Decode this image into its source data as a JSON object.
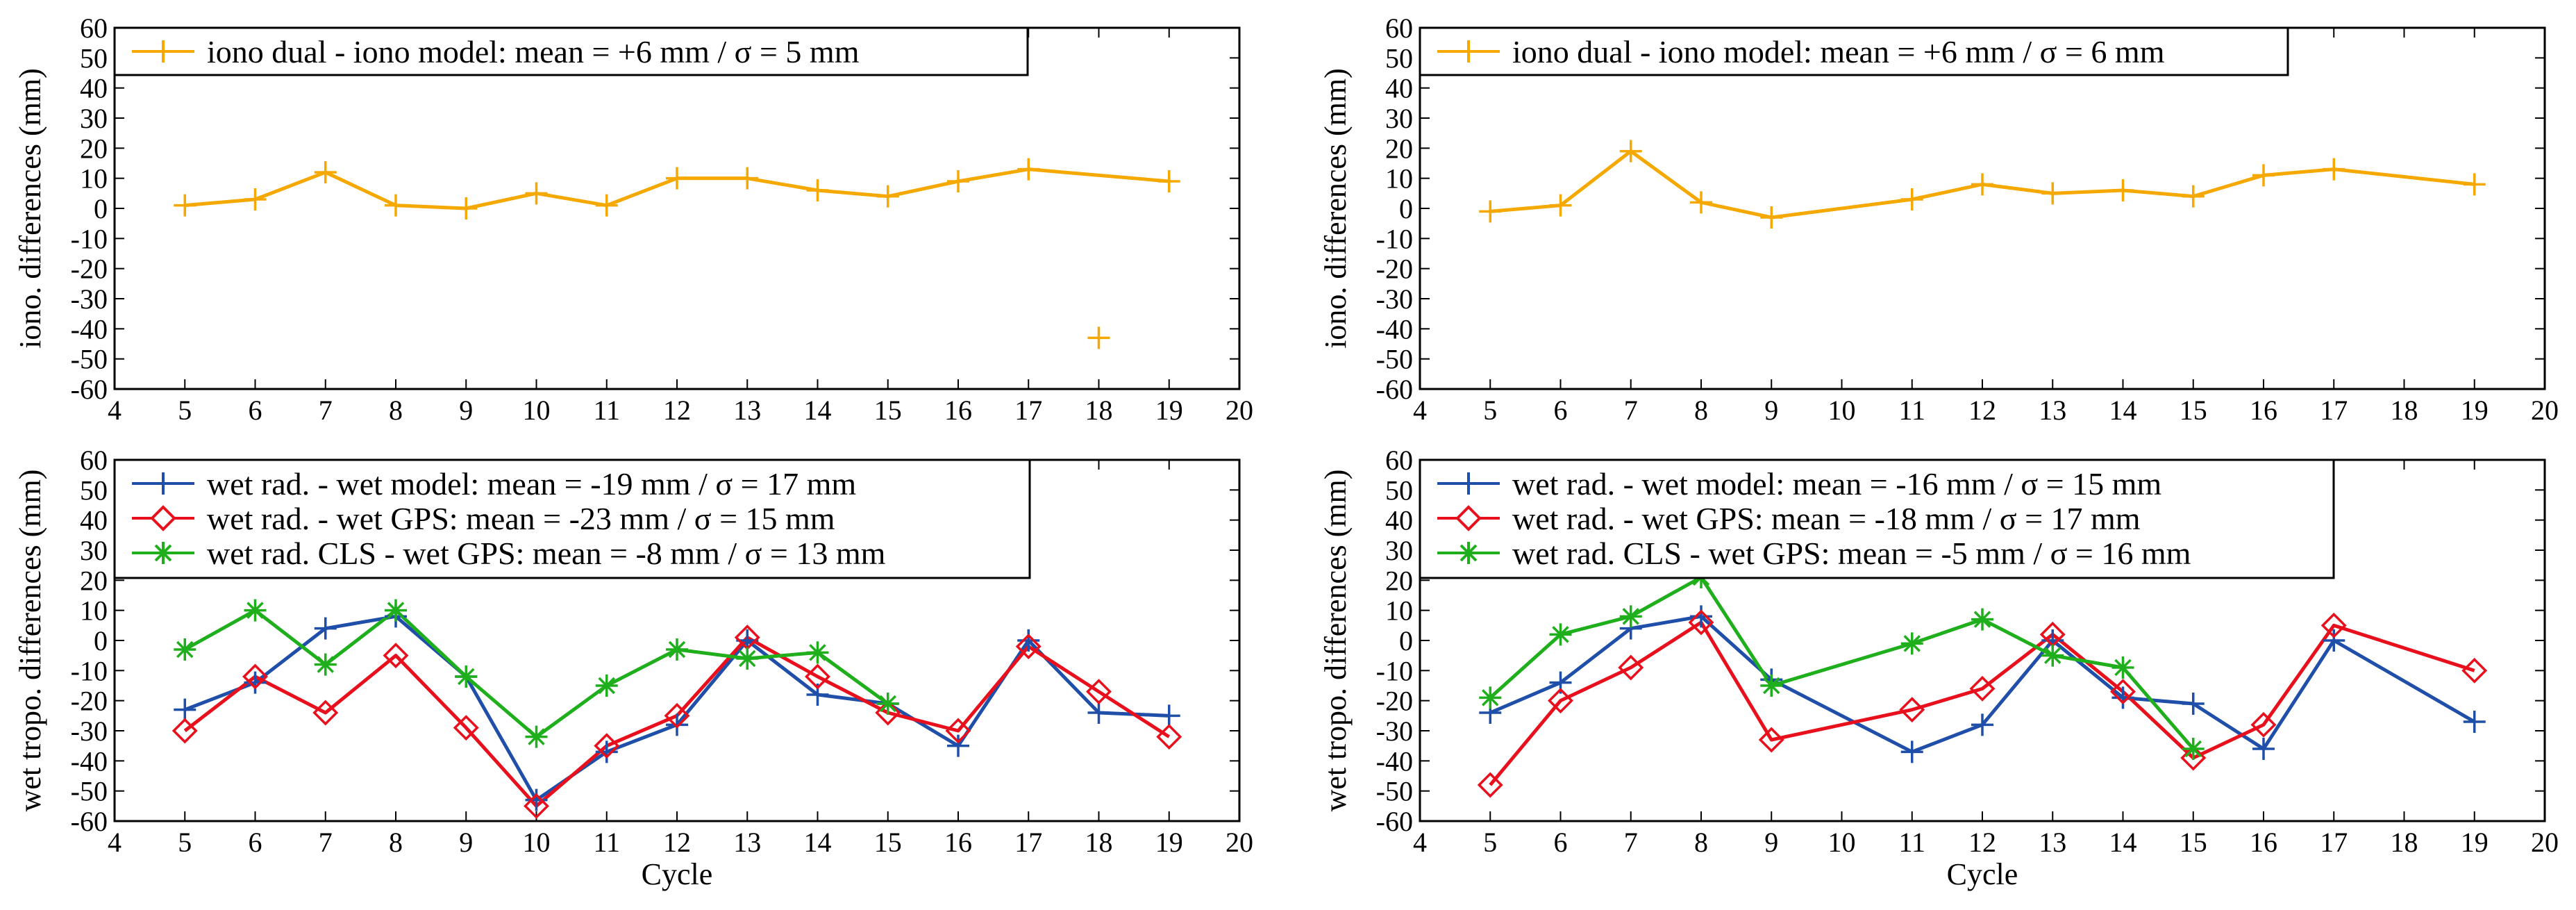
{
  "figure": {
    "panels": [
      {
        "id": "top-left",
        "xlabel": "",
        "ylabel": "iono. differences (mm)",
        "legend": "top-left"
      },
      {
        "id": "top-right",
        "xlabel": "",
        "ylabel": "iono. differences (mm)",
        "legend": "top-left"
      },
      {
        "id": "bottom-left",
        "xlabel": "Cycle",
        "ylabel": "wet tropo. differences (mm)",
        "legend": "top-left"
      },
      {
        "id": "bottom-right",
        "xlabel": "Cycle",
        "ylabel": "wet tropo. differences (mm)",
        "legend": "top-left"
      }
    ]
  },
  "chart_data": [
    {
      "type": "line",
      "panel": "top-left",
      "title": "",
      "xlabel": "",
      "ylabel": "iono. differences (mm)",
      "xlim": [
        4,
        20
      ],
      "ylim": [
        -60,
        60
      ],
      "xticks": [
        4,
        5,
        6,
        7,
        8,
        9,
        10,
        11,
        12,
        13,
        14,
        15,
        16,
        17,
        18,
        19,
        20
      ],
      "yticks": [
        60,
        50,
        40,
        30,
        20,
        10,
        0,
        -10,
        -20,
        -30,
        -40,
        -50,
        -60
      ],
      "series": [
        {
          "name": "iono dual - iono model: mean = +6 mm / σ = 5 mm",
          "color": "#f5a800",
          "marker": "plus",
          "line_x": [
            5,
            6,
            7,
            8,
            9,
            10,
            11,
            12,
            13,
            14,
            15,
            16,
            17,
            19
          ],
          "line_y": [
            1,
            3,
            12,
            1,
            0,
            5,
            1,
            10,
            10,
            6,
            4,
            9,
            13,
            9
          ],
          "points_x": [
            5,
            6,
            7,
            8,
            9,
            10,
            11,
            12,
            13,
            14,
            15,
            16,
            17,
            18,
            19
          ],
          "points_y": [
            1,
            3,
            12,
            1,
            0,
            5,
            1,
            10,
            10,
            6,
            4,
            9,
            13,
            -43,
            9
          ]
        }
      ]
    },
    {
      "type": "line",
      "panel": "top-right",
      "title": "",
      "xlabel": "",
      "ylabel": "iono. differences (mm)",
      "xlim": [
        4,
        20
      ],
      "ylim": [
        -60,
        60
      ],
      "xticks": [
        4,
        5,
        6,
        7,
        8,
        9,
        10,
        11,
        12,
        13,
        14,
        15,
        16,
        17,
        18,
        19,
        20
      ],
      "yticks": [
        60,
        50,
        40,
        30,
        20,
        10,
        0,
        -10,
        -20,
        -30,
        -40,
        -50,
        -60
      ],
      "series": [
        {
          "name": "iono dual - iono model: mean = +6 mm / σ = 6 mm",
          "color": "#f5a800",
          "marker": "plus",
          "line_x": [
            5,
            6,
            7,
            8,
            9,
            11,
            12,
            13,
            14,
            15,
            16,
            17,
            19
          ],
          "line_y": [
            -1,
            1,
            19,
            2,
            -3,
            3,
            8,
            5,
            6,
            4,
            11,
            13,
            8
          ],
          "points_x": [
            5,
            6,
            7,
            8,
            9,
            11,
            12,
            13,
            14,
            15,
            16,
            17,
            19
          ],
          "points_y": [
            -1,
            1,
            19,
            2,
            -3,
            3,
            8,
            5,
            6,
            4,
            11,
            13,
            8
          ]
        }
      ]
    },
    {
      "type": "line",
      "panel": "bottom-left",
      "title": "",
      "xlabel": "Cycle",
      "ylabel": "wet tropo. differences (mm)",
      "xlim": [
        4,
        20
      ],
      "ylim": [
        -60,
        60
      ],
      "xticks": [
        4,
        5,
        6,
        7,
        8,
        9,
        10,
        11,
        12,
        13,
        14,
        15,
        16,
        17,
        18,
        19,
        20
      ],
      "yticks": [
        60,
        50,
        40,
        30,
        20,
        10,
        0,
        -10,
        -20,
        -30,
        -40,
        -50,
        -60
      ],
      "series": [
        {
          "name": "wet rad. - wet model: mean = -19 mm / σ = 17 mm",
          "color": "#1f4fa8",
          "marker": "plus",
          "line_x": [
            5,
            6,
            7,
            8,
            9,
            10,
            11,
            12,
            13,
            14,
            15,
            16,
            17,
            18,
            19
          ],
          "line_y": [
            -23,
            -14,
            4,
            8,
            -12,
            -53,
            -37,
            -28,
            0,
            -18,
            -21,
            -35,
            0,
            -24,
            -25
          ],
          "points_x": [
            5,
            6,
            7,
            8,
            9,
            10,
            11,
            12,
            13,
            14,
            15,
            16,
            17,
            18,
            19
          ],
          "points_y": [
            -23,
            -14,
            4,
            8,
            -12,
            -53,
            -37,
            -28,
            0,
            -18,
            -21,
            -35,
            0,
            -24,
            -25
          ]
        },
        {
          "name": "wet rad. - wet GPS: mean = -23 mm / σ = 15 mm",
          "color": "#e8101c",
          "marker": "diamond",
          "line_x": [
            5,
            6,
            7,
            8,
            9,
            10,
            11,
            12,
            13,
            14,
            15,
            16,
            17,
            18,
            19
          ],
          "line_y": [
            -30,
            -12,
            -24,
            -5,
            -29,
            -55,
            -35,
            -25,
            1,
            -12,
            -24,
            -30,
            -2,
            -17,
            -32
          ],
          "points_x": [
            5,
            6,
            7,
            8,
            9,
            10,
            11,
            12,
            13,
            14,
            15,
            16,
            17,
            18,
            19
          ],
          "points_y": [
            -30,
            -12,
            -24,
            -5,
            -29,
            -55,
            -35,
            -25,
            1,
            -12,
            -24,
            -30,
            -2,
            -17,
            -32
          ]
        },
        {
          "name": "wet rad. CLS - wet GPS: mean = -8 mm / σ = 13 mm",
          "color": "#1fae1c",
          "marker": "star",
          "line_x": [
            5,
            6,
            7,
            8,
            9,
            10,
            11,
            12,
            13,
            14,
            15
          ],
          "line_y": [
            -3,
            10,
            -8,
            10,
            -12,
            -32,
            -15,
            -3,
            -6,
            -4,
            -21
          ],
          "points_x": [
            5,
            6,
            7,
            8,
            9,
            10,
            11,
            12,
            13,
            14,
            15
          ],
          "points_y": [
            -3,
            10,
            -8,
            10,
            -12,
            -32,
            -15,
            -3,
            -6,
            -4,
            -21
          ]
        }
      ]
    },
    {
      "type": "line",
      "panel": "bottom-right",
      "title": "",
      "xlabel": "Cycle",
      "ylabel": "wet tropo. differences (mm)",
      "xlim": [
        4,
        20
      ],
      "ylim": [
        -60,
        60
      ],
      "xticks": [
        4,
        5,
        6,
        7,
        8,
        9,
        10,
        11,
        12,
        13,
        14,
        15,
        16,
        17,
        18,
        19,
        20
      ],
      "yticks": [
        60,
        50,
        40,
        30,
        20,
        10,
        0,
        -10,
        -20,
        -30,
        -40,
        -50,
        -60
      ],
      "series": [
        {
          "name": "wet rad. - wet model: mean = -16 mm / σ = 15 mm",
          "color": "#1f4fa8",
          "marker": "plus",
          "line_x": [
            5,
            6,
            7,
            8,
            9,
            11,
            12,
            13,
            14,
            15,
            16,
            17,
            19
          ],
          "line_y": [
            -24,
            -14,
            4,
            8,
            -13,
            -37,
            -28,
            0,
            -19,
            -21,
            -36,
            0,
            -27
          ],
          "points_x": [
            5,
            6,
            7,
            8,
            9,
            11,
            12,
            13,
            14,
            15,
            16,
            17,
            19
          ],
          "points_y": [
            -24,
            -14,
            4,
            8,
            -13,
            -37,
            -28,
            0,
            -19,
            -21,
            -36,
            0,
            -27
          ]
        },
        {
          "name": "wet rad. - wet GPS: mean = -18 mm / σ = 17 mm",
          "color": "#e8101c",
          "marker": "diamond",
          "line_x": [
            5,
            6,
            7,
            8,
            9,
            11,
            12,
            13,
            14,
            15,
            16,
            17,
            19
          ],
          "line_y": [
            -48,
            -20,
            -9,
            6,
            -33,
            -23,
            -16,
            2,
            -17,
            -39,
            -28,
            5,
            -10
          ],
          "points_x": [
            5,
            6,
            7,
            8,
            9,
            11,
            12,
            13,
            14,
            15,
            16,
            17,
            19
          ],
          "points_y": [
            -48,
            -20,
            -9,
            6,
            -33,
            -23,
            -16,
            2,
            -17,
            -39,
            -28,
            5,
            -10
          ]
        },
        {
          "name": "wet rad. CLS - wet GPS: mean = -5 mm / σ = 16 mm",
          "color": "#1fae1c",
          "marker": "star",
          "line_x": [
            5,
            6,
            7,
            8,
            9,
            11,
            12,
            13,
            14,
            15
          ],
          "line_y": [
            -19,
            2,
            8,
            21,
            -15,
            -1,
            7,
            -5,
            -9,
            -36
          ],
          "points_x": [
            5,
            6,
            7,
            8,
            9,
            11,
            12,
            13,
            14,
            15
          ],
          "points_y": [
            -19,
            2,
            8,
            21,
            -15,
            -1,
            7,
            -5,
            -9,
            -36
          ]
        }
      ]
    }
  ]
}
